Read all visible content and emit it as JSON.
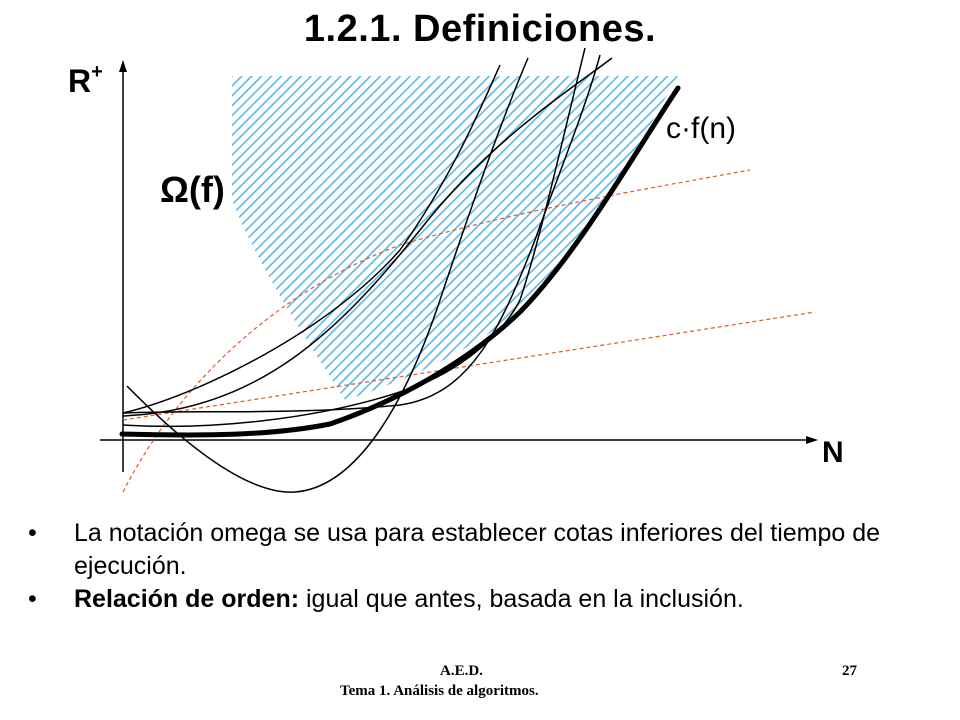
{
  "slide": {
    "title": "1.2.1. Definiciones.",
    "page_number": "27",
    "footer_line1": "A.E.D.",
    "footer_line2": "Tema 1. Análisis de algoritmos."
  },
  "diagram": {
    "y_axis_label": "R",
    "y_axis_superscript": "+",
    "x_axis_label": "N",
    "curve_label": "c·f(n)",
    "region_label": "Ω(f)",
    "colors": {
      "hatch": "#5bb8e8",
      "dashed": "#e05a2b",
      "curves": "#000000"
    }
  },
  "bullets": [
    {
      "bold": "",
      "text": "La notación omega se usa para establecer cotas inferiores del tiempo de ejecución."
    },
    {
      "bold": "Relación de orden:",
      "text": " igual que antes, basada en la inclusión."
    }
  ]
}
